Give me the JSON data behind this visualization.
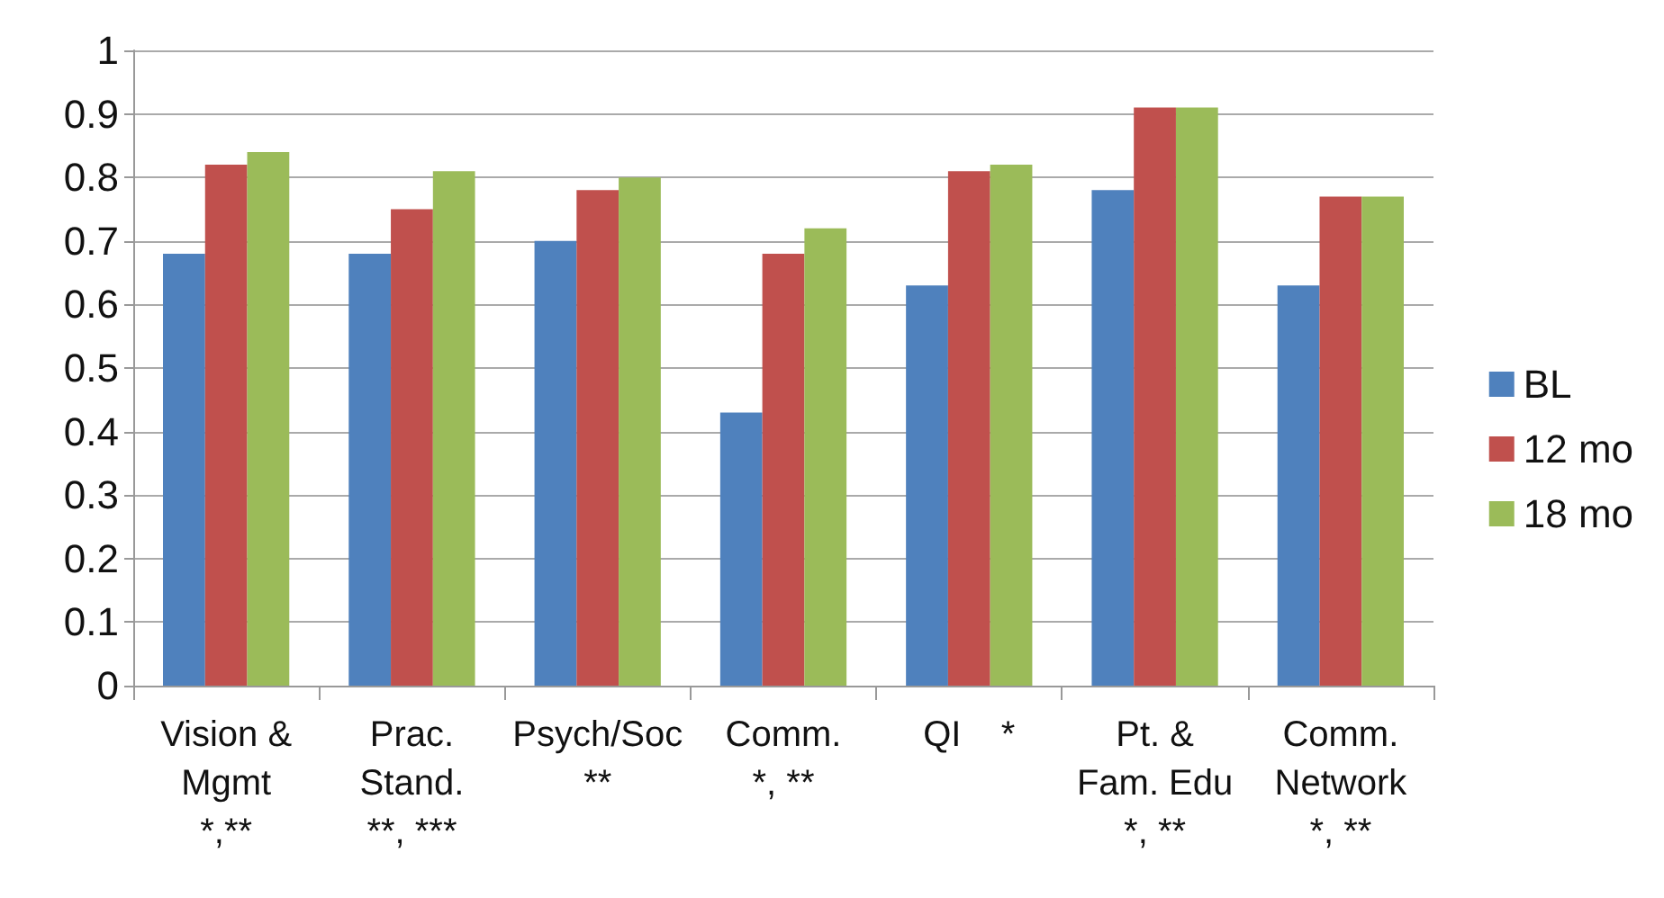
{
  "chart_data": {
    "type": "bar",
    "categories": [
      "Vision &\nMgmt\n*,**",
      "Prac.\nStand.\n**, ***",
      "Psych/Soc\n**",
      "Comm.\n*, **",
      "QI    *",
      "Pt. &\nFam. Edu\n*, **",
      "Comm.\nNetwork\n*, **"
    ],
    "series": [
      {
        "name": "BL",
        "color": "#4f81bd",
        "values": [
          0.68,
          0.68,
          0.7,
          0.43,
          0.63,
          0.78,
          0.63
        ]
      },
      {
        "name": "12 mo",
        "color": "#c0504d",
        "values": [
          0.82,
          0.75,
          0.78,
          0.68,
          0.81,
          0.91,
          0.77
        ]
      },
      {
        "name": "18 mo",
        "color": "#9bbb59",
        "values": [
          0.84,
          0.81,
          0.8,
          0.72,
          0.82,
          0.91,
          0.77
        ]
      }
    ],
    "ylim": [
      0,
      1
    ],
    "yticks": [
      0,
      0.1,
      0.2,
      0.3,
      0.4,
      0.5,
      0.6,
      0.7,
      0.8,
      0.9,
      1
    ],
    "grid": "y",
    "legend": "right"
  }
}
